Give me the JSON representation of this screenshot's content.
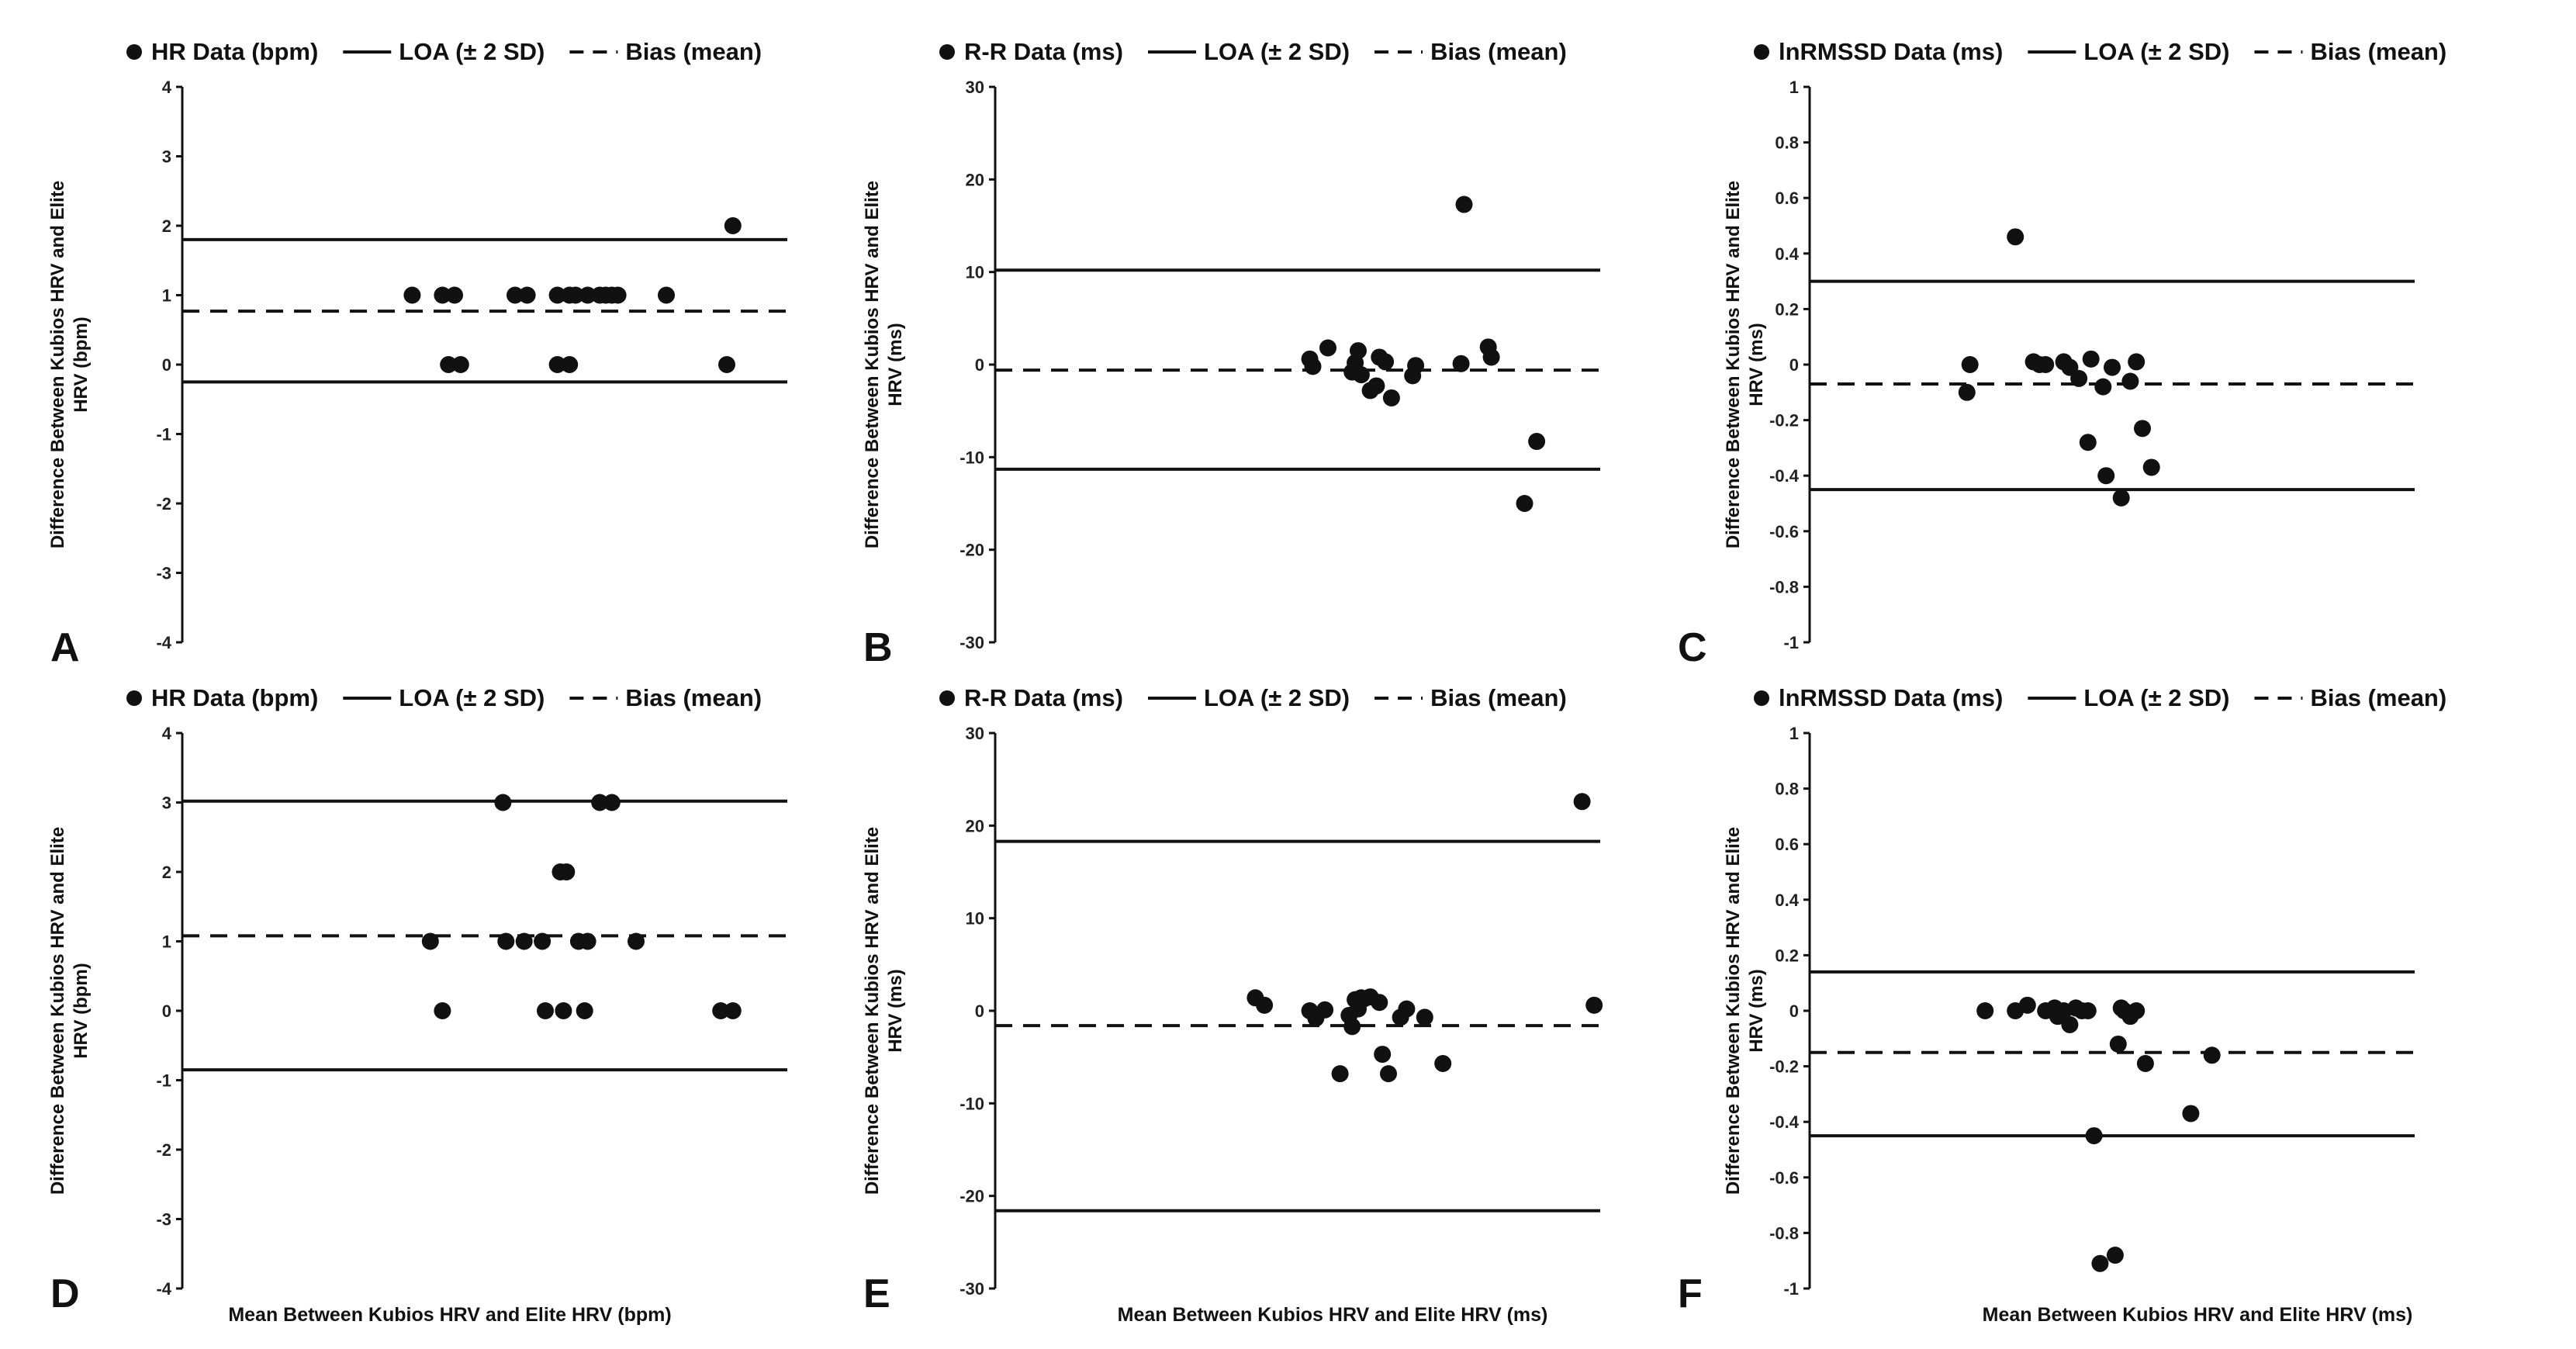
{
  "figure": {
    "x_axis_label": "Mean Between Kubios HRV and Elite HRV (bpm)"
  },
  "chart_data": [
    {
      "panel": "A",
      "type": "scatter",
      "legend": {
        "data": "HR Data (bpm)",
        "loa": "LOA (± 2 SD)",
        "bias": "Bias (mean)"
      },
      "ylabel_lines": [
        "Difference Between Kubios HRV and Elite",
        "HRV (bpm)"
      ],
      "xlabel": "",
      "ylim": [
        -4,
        4
      ],
      "yticks": [
        4,
        3,
        2,
        1,
        0,
        -1,
        -2,
        -3,
        -4
      ],
      "tick_labels": [
        "4",
        "3",
        "2",
        "1",
        "0",
        "-1",
        "-2",
        "-3",
        "-4"
      ],
      "xlim": [
        0,
        100
      ],
      "loa_upper": 1.8,
      "loa_lower": -0.25,
      "bias": 0.77,
      "points": [
        [
          38,
          1
        ],
        [
          43,
          1
        ],
        [
          45,
          1
        ],
        [
          55,
          1
        ],
        [
          57,
          1
        ],
        [
          62,
          1
        ],
        [
          64,
          1
        ],
        [
          65,
          1
        ],
        [
          67,
          1
        ],
        [
          69,
          1
        ],
        [
          70,
          1
        ],
        [
          71,
          1
        ],
        [
          72,
          1
        ],
        [
          80,
          1
        ],
        [
          44,
          0
        ],
        [
          46,
          0
        ],
        [
          62,
          0
        ],
        [
          64,
          0
        ],
        [
          90,
          0
        ],
        [
          91,
          2
        ]
      ]
    },
    {
      "panel": "B",
      "type": "scatter",
      "legend": {
        "data": "R-R Data (ms)",
        "loa": "LOA (± 2 SD)",
        "bias": "Bias (mean)"
      },
      "ylabel_lines": [
        "Difference Between Kubios HRV and Elite",
        "HRV (ms)"
      ],
      "xlabel": "",
      "ylim": [
        -30,
        30
      ],
      "yticks": [
        30,
        20,
        10,
        0,
        -10,
        -20,
        -30
      ],
      "tick_labels": [
        "30",
        "20",
        "10",
        "0",
        "-10",
        "-20",
        "-30"
      ],
      "xlim": [
        0,
        100
      ],
      "loa_upper": 10.2,
      "loa_lower": -11.3,
      "bias": -0.6,
      "points": [
        [
          52,
          0.6
        ],
        [
          52.5,
          -0.2
        ],
        [
          55,
          1.8
        ],
        [
          59,
          -0.8
        ],
        [
          59.5,
          0.2
        ],
        [
          60,
          1.5
        ],
        [
          60.5,
          -1.1
        ],
        [
          62,
          -2.8
        ],
        [
          63,
          -2.3
        ],
        [
          63.5,
          0.8
        ],
        [
          64.5,
          0.3
        ],
        [
          65.5,
          -3.6
        ],
        [
          69,
          -1.2
        ],
        [
          69.5,
          -0.1
        ],
        [
          77,
          0.1
        ],
        [
          77.5,
          17.3
        ],
        [
          81.5,
          1.9
        ],
        [
          82,
          0.8
        ],
        [
          87.5,
          -15
        ],
        [
          89.5,
          -8.3
        ]
      ]
    },
    {
      "panel": "C",
      "type": "scatter",
      "legend": {
        "data": "lnRMSSD Data (ms)",
        "loa": "LOA (± 2 SD)",
        "bias": "Bias (mean)"
      },
      "ylabel_lines": [
        "Difference Between Kubios HRV and Elite",
        "HRV (ms)"
      ],
      "xlabel": "",
      "ylim": [
        -1,
        1
      ],
      "yticks": [
        1,
        0.8,
        0.6,
        0.4,
        0.2,
        0,
        -0.2,
        -0.4,
        -0.6,
        -0.8,
        -1
      ],
      "tick_labels": [
        "1",
        "0.8",
        "0.6",
        "0.4",
        "0.2",
        "0",
        "-0.2",
        "-0.4",
        "-0.6",
        "-0.8",
        "-1"
      ],
      "xlim": [
        0,
        100
      ],
      "loa_upper": 0.3,
      "loa_lower": -0.45,
      "bias": -0.07,
      "points": [
        [
          26,
          -0.1
        ],
        [
          26.5,
          0
        ],
        [
          34,
          0.46
        ],
        [
          37,
          0.01
        ],
        [
          38,
          0
        ],
        [
          39,
          0
        ],
        [
          42,
          0.01
        ],
        [
          43,
          -0.01
        ],
        [
          44.5,
          -0.05
        ],
        [
          46,
          -0.28
        ],
        [
          46.5,
          0.02
        ],
        [
          48.5,
          -0.08
        ],
        [
          49,
          -0.4
        ],
        [
          50,
          -0.01
        ],
        [
          51.5,
          -0.48
        ],
        [
          53,
          -0.06
        ],
        [
          54,
          0.01
        ],
        [
          55,
          -0.23
        ],
        [
          56.5,
          -0.37
        ]
      ]
    },
    {
      "panel": "D",
      "type": "scatter",
      "legend": {
        "data": "HR Data (bpm)",
        "loa": "LOA (± 2 SD)",
        "bias": "Bias (mean)"
      },
      "ylabel_lines": [
        "Difference Between Kubios HRV and Elite",
        "HRV  (bpm)"
      ],
      "xlabel": "Mean Between Kubios HRV and Elite HRV (bpm)",
      "ylim": [
        -4,
        4
      ],
      "yticks": [
        4,
        3,
        2,
        1,
        0,
        -1,
        -2,
        -3,
        -4
      ],
      "tick_labels": [
        "4",
        "3",
        "2",
        "1",
        "0",
        "-1",
        "-2",
        "-3",
        "-4"
      ],
      "xlim": [
        0,
        100
      ],
      "loa_upper": 3.02,
      "loa_lower": -0.85,
      "bias": 1.08,
      "points": [
        [
          41,
          1
        ],
        [
          43,
          0
        ],
        [
          53,
          3
        ],
        [
          53.5,
          1
        ],
        [
          56.5,
          1
        ],
        [
          59.5,
          1
        ],
        [
          60,
          0
        ],
        [
          62.5,
          2
        ],
        [
          63,
          0
        ],
        [
          63.5,
          2
        ],
        [
          65.5,
          1
        ],
        [
          66.5,
          0
        ],
        [
          67,
          1
        ],
        [
          69,
          3
        ],
        [
          71,
          3
        ],
        [
          75,
          1
        ],
        [
          89,
          0
        ],
        [
          91,
          0
        ]
      ]
    },
    {
      "panel": "E",
      "type": "scatter",
      "legend": {
        "data": "R-R Data (ms)",
        "loa": "LOA (± 2 SD)",
        "bias": "Bias (mean)"
      },
      "ylabel_lines": [
        "Difference Between Kubios HRV and Elite",
        "HRV (ms)"
      ],
      "xlabel": "Mean Between Kubios HRV and Elite HRV (ms)",
      "ylim": [
        -30,
        30
      ],
      "yticks": [
        30,
        20,
        10,
        0,
        -10,
        -20,
        -30
      ],
      "tick_labels": [
        "30",
        "20",
        "10",
        "0",
        "-10",
        "-20",
        "-30"
      ],
      "xlim": [
        0,
        100
      ],
      "loa_upper": 18.3,
      "loa_lower": -21.6,
      "bias": -1.6,
      "points": [
        [
          43,
          1.4
        ],
        [
          44.5,
          0.6
        ],
        [
          52,
          0
        ],
        [
          53,
          -0.8
        ],
        [
          54.5,
          0.1
        ],
        [
          57,
          -6.8
        ],
        [
          58.5,
          -0.5
        ],
        [
          59,
          -1.7
        ],
        [
          59.5,
          1.2
        ],
        [
          60,
          0.2
        ],
        [
          60.5,
          1.4
        ],
        [
          61,
          1.3
        ],
        [
          62,
          1.5
        ],
        [
          63.5,
          0.9
        ],
        [
          64,
          -4.7
        ],
        [
          65,
          -6.8
        ],
        [
          67,
          -0.7
        ],
        [
          68,
          0.2
        ],
        [
          71,
          -0.7
        ],
        [
          74,
          -5.7
        ],
        [
          97,
          22.6
        ],
        [
          99,
          0.6
        ]
      ]
    },
    {
      "panel": "F",
      "type": "scatter",
      "legend": {
        "data": "lnRMSSD Data (ms)",
        "loa": "LOA (± 2 SD)",
        "bias": "Bias (mean)"
      },
      "ylabel_lines": [
        "Difference Between Kubios HRV and Elite",
        "HRV (ms)"
      ],
      "xlabel": "Mean Between Kubios HRV and Elite HRV (ms)",
      "ylim": [
        -1,
        1
      ],
      "yticks": [
        1,
        0.8,
        0.6,
        0.4,
        0.2,
        0,
        -0.2,
        -0.4,
        -0.6,
        -0.8,
        -1
      ],
      "tick_labels": [
        "1",
        "0.8",
        "0.6",
        "0.4",
        "0.2",
        "0",
        "-0.2",
        "-0.4",
        "-0.6",
        "-0.8",
        "-1"
      ],
      "xlim": [
        0,
        100
      ],
      "loa_upper": 0.14,
      "loa_lower": -0.45,
      "bias": -0.15,
      "points": [
        [
          29,
          0
        ],
        [
          34,
          0
        ],
        [
          36,
          0.02
        ],
        [
          39,
          0
        ],
        [
          40.5,
          0.01
        ],
        [
          41,
          -0.02
        ],
        [
          42,
          0
        ],
        [
          43,
          -0.05
        ],
        [
          44,
          0.01
        ],
        [
          45,
          0
        ],
        [
          46,
          0
        ],
        [
          47,
          -0.45
        ],
        [
          48,
          -0.91
        ],
        [
          50.5,
          -0.88
        ],
        [
          51.5,
          0.01
        ],
        [
          51,
          -0.12
        ],
        [
          52,
          0
        ],
        [
          53,
          -0.02
        ],
        [
          54,
          0
        ],
        [
          55.5,
          -0.19
        ],
        [
          63,
          -0.37
        ],
        [
          66.5,
          -0.16
        ]
      ]
    }
  ]
}
